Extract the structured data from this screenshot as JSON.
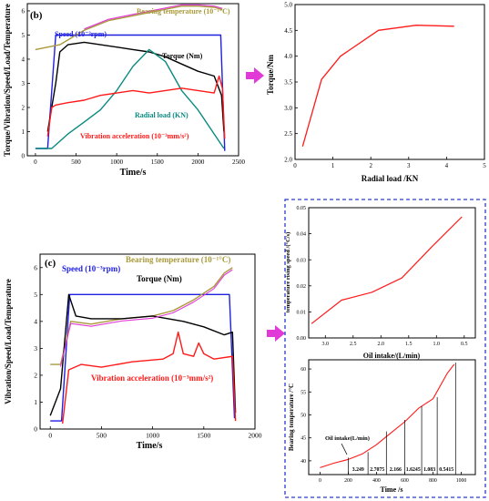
{
  "colors": {
    "speed": "#1f1fe0",
    "torque": "#000000",
    "radial_load": "#0a8a80",
    "vibration": "#ff1a1a",
    "bearing_temp_olive": "#a89a3a",
    "bearing_temp_magenta": "#e23ad6",
    "arrow_magenta": "#e23ad6",
    "dashed_box": "#2a3ccc",
    "right_red": "#ff1a1a",
    "axis": "#000000"
  },
  "panel_b": {
    "label": "(b)",
    "ylabel": "Torque/Vibration/Speed/Load/Temperature",
    "xlabel": "Time/s",
    "xticks": [
      "0",
      "500",
      "1000",
      "1500",
      "2000",
      "2500"
    ],
    "yticks": [
      "0",
      "1",
      "2",
      "3",
      "4",
      "5",
      "6"
    ],
    "legend": {
      "speed": "Speed (10⁻³rpm)",
      "bearing_temp": "Bearing temperature (10⁻¹°C)",
      "torque": "Torque (Nm)",
      "radial_load": "Radial load (KN)",
      "vibration": "Vibration acceleration (10⁻³mm/s²)"
    }
  },
  "panel_b_right": {
    "ylabel": "Torque/Nm",
    "xlabel": "Radial load /KN",
    "xticks": [
      "0",
      "1",
      "2",
      "3",
      "4",
      "5"
    ],
    "yticks": [
      "2.0",
      "2.5",
      "3.0",
      "3.5",
      "4.0",
      "4.5",
      "5.0"
    ]
  },
  "panel_c": {
    "label": "(c)",
    "ylabel": "Vibration/Speed/Load/Temperature",
    "xlabel": "Time/s",
    "xticks": [
      "0",
      "500",
      "1000",
      "1500",
      "2000"
    ],
    "yticks": [
      "0",
      "1",
      "2",
      "3",
      "4",
      "5",
      "6"
    ],
    "legend": {
      "speed": "Speed (10⁻³rpm)",
      "bearing_temp": "Bearing temperature (10⁻¹°C)",
      "torque": "Torque (Nm)",
      "vibration": "Vibration acceleration (10⁻³mm/s²)"
    }
  },
  "panel_c_right_top": {
    "ylabel": "temperature rising speed /(°C/s)",
    "xlabel": "Oil intake/(L/min)",
    "xticks": [
      "3.0",
      "2.5",
      "2.0",
      "1.5",
      "1.0",
      "0.5"
    ],
    "yticks": [
      "0.00",
      "0.01",
      "0.02",
      "0.03",
      "0.04",
      "0.05"
    ]
  },
  "panel_c_right_bottom": {
    "ylabel": "Bearing temperature /°C",
    "xlabel": "Time /s",
    "xticks": [
      "0",
      "200",
      "400",
      "600",
      "800",
      "1000"
    ],
    "yticks": [
      "40",
      "45",
      "50",
      "55",
      "60"
    ],
    "annotation_title": "Oil intake(L/min)",
    "intervals": [
      "3.249",
      "2.7075",
      "2.166",
      "1.6245",
      "1.083",
      "0.5415"
    ]
  },
  "chart_data": [
    {
      "type": "line",
      "panel": "(b)",
      "xlabel": "Time/s",
      "ylabel": "Torque/Vibration/Speed/Load/Temperature",
      "xlim": [
        -100,
        2500
      ],
      "ylim": [
        0,
        6.3
      ],
      "series": [
        {
          "name": "Speed (10⁻³rpm)",
          "x": [
            0,
            150,
            250,
            2280,
            2330
          ],
          "y": [
            0.3,
            0.3,
            5.0,
            5.0,
            0.2
          ]
        },
        {
          "name": "Bearing temperature (10⁻¹°C)",
          "x": [
            0,
            300,
            600,
            900,
            1200,
            1500,
            1800,
            2000,
            2200,
            2300
          ],
          "y": [
            4.4,
            4.6,
            5.2,
            5.6,
            5.8,
            6.0,
            6.2,
            6.2,
            6.15,
            6.05
          ]
        },
        {
          "name": "Torque (Nm)",
          "x": [
            150,
            200,
            250,
            300,
            400,
            600,
            800,
            1000,
            1200,
            1400,
            1600,
            1800,
            2000,
            2200,
            2290,
            2320
          ],
          "y": [
            1.0,
            2.0,
            3.0,
            4.3,
            4.6,
            4.7,
            4.6,
            4.5,
            4.4,
            4.3,
            4.1,
            3.8,
            3.5,
            3.3,
            2.5,
            1.0
          ]
        },
        {
          "name": "Radial load (KN)",
          "x": [
            0,
            200,
            400,
            600,
            800,
            1000,
            1200,
            1400,
            1600,
            1800,
            2000,
            2200,
            2320
          ],
          "y": [
            0.3,
            0.3,
            0.9,
            1.4,
            1.9,
            2.7,
            3.7,
            4.4,
            3.9,
            2.7,
            1.9,
            0.9,
            0.3
          ]
        },
        {
          "name": "Vibration acceleration (10⁻³mm/s²)",
          "x": [
            150,
            200,
            250,
            400,
            600,
            800,
            1000,
            1200,
            1400,
            1600,
            1800,
            2000,
            2200,
            2260,
            2300,
            2330
          ],
          "y": [
            0.8,
            2.0,
            2.1,
            2.2,
            2.3,
            2.5,
            2.6,
            2.7,
            2.6,
            2.7,
            2.8,
            2.7,
            2.6,
            3.3,
            2.8,
            0.7
          ]
        }
      ]
    },
    {
      "type": "line",
      "panel": "(b) right",
      "xlabel": "Radial load /KN",
      "ylabel": "Torque/Nm",
      "xlim": [
        0,
        5
      ],
      "ylim": [
        2.0,
        5.0
      ],
      "series": [
        {
          "x": [
            0.2,
            0.7,
            1.2,
            2.2,
            3.2,
            4.2
          ],
          "y": [
            2.25,
            3.55,
            4.0,
            4.5,
            4.6,
            4.58
          ]
        }
      ]
    },
    {
      "type": "line",
      "panel": "(c)",
      "xlabel": "Time/s",
      "ylabel": "Vibration/Speed/Load/Temperature",
      "xlim": [
        -100,
        2000
      ],
      "ylim": [
        0,
        6.5
      ],
      "series": [
        {
          "name": "Speed (10⁻³rpm)",
          "x": [
            0,
            110,
            190,
            1750,
            1800
          ],
          "y": [
            0.3,
            0.3,
            5.0,
            5.0,
            0.4
          ]
        },
        {
          "name": "Bearing temperature (10⁻¹°C)",
          "x": [
            0,
            100,
            200,
            400,
            700,
            1000,
            1200,
            1400,
            1600,
            1700,
            1780
          ],
          "y": [
            2.4,
            2.4,
            4.0,
            3.9,
            4.1,
            4.2,
            4.4,
            4.8,
            5.3,
            5.8,
            6.0
          ]
        },
        {
          "name": "Torque (Nm)",
          "x": [
            0,
            100,
            180,
            250,
            400,
            700,
            1000,
            1300,
            1500,
            1700,
            1780,
            1810
          ],
          "y": [
            0.5,
            1.5,
            5.0,
            4.2,
            4.1,
            4.1,
            4.2,
            4.0,
            3.8,
            3.5,
            3.6,
            0.6
          ]
        },
        {
          "name": "Vibration acceleration (10⁻³mm/s²)",
          "x": [
            120,
            180,
            300,
            500,
            800,
            1100,
            1200,
            1250,
            1300,
            1400,
            1450,
            1500,
            1600,
            1780,
            1810
          ],
          "y": [
            0.2,
            2.2,
            2.4,
            2.3,
            2.5,
            2.6,
            2.8,
            3.6,
            2.8,
            2.7,
            3.2,
            2.8,
            2.6,
            2.7,
            0.3
          ]
        }
      ]
    },
    {
      "type": "line",
      "panel": "(c) right top",
      "xlabel": "Oil intake/(L/min)",
      "ylabel": "temperature rising speed /(°C/s)",
      "xlim": [
        3.3,
        0.3
      ],
      "ylim": [
        0,
        0.05
      ],
      "series": [
        {
          "x": [
            3.249,
            2.7075,
            2.166,
            1.6245,
            1.083,
            0.5415
          ],
          "y": [
            0.0055,
            0.0145,
            0.0175,
            0.023,
            0.035,
            0.0465
          ]
        }
      ]
    },
    {
      "type": "line",
      "panel": "(c) right bottom",
      "xlabel": "Time /s",
      "ylabel": "Bearing temperature /°C",
      "xlim": [
        -80,
        1100
      ],
      "ylim": [
        37,
        62
      ],
      "series": [
        {
          "x": [
            0,
            100,
            200,
            300,
            400,
            500,
            600,
            700,
            800,
            900,
            950
          ],
          "y": [
            38.5,
            39.5,
            40.3,
            41.5,
            43.5,
            46.0,
            48.5,
            51.5,
            53.5,
            59.0,
            61.0
          ]
        }
      ],
      "interval_boundaries": [
        200,
        340,
        470,
        600,
        720,
        830,
        960
      ]
    }
  ]
}
